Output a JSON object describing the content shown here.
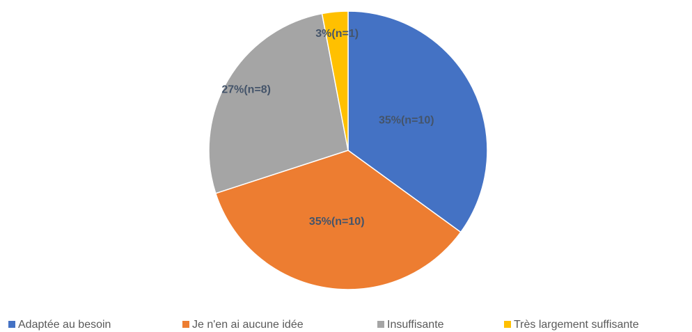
{
  "chart_data": {
    "type": "pie",
    "categories": [
      "Adaptée au besoin",
      "Je n'en ai aucune idée",
      "Insuffisante",
      "Très largement suffisante"
    ],
    "values": [
      35,
      35,
      27,
      3
    ],
    "value_labels": [
      "35%(n=10)",
      "35%(n=10)",
      "27%(n=8)",
      "3%(n=1)"
    ],
    "colors": [
      "#4472c4",
      "#ed7d31",
      "#a5a5a5",
      "#ffc000"
    ],
    "legend": "bottom"
  }
}
